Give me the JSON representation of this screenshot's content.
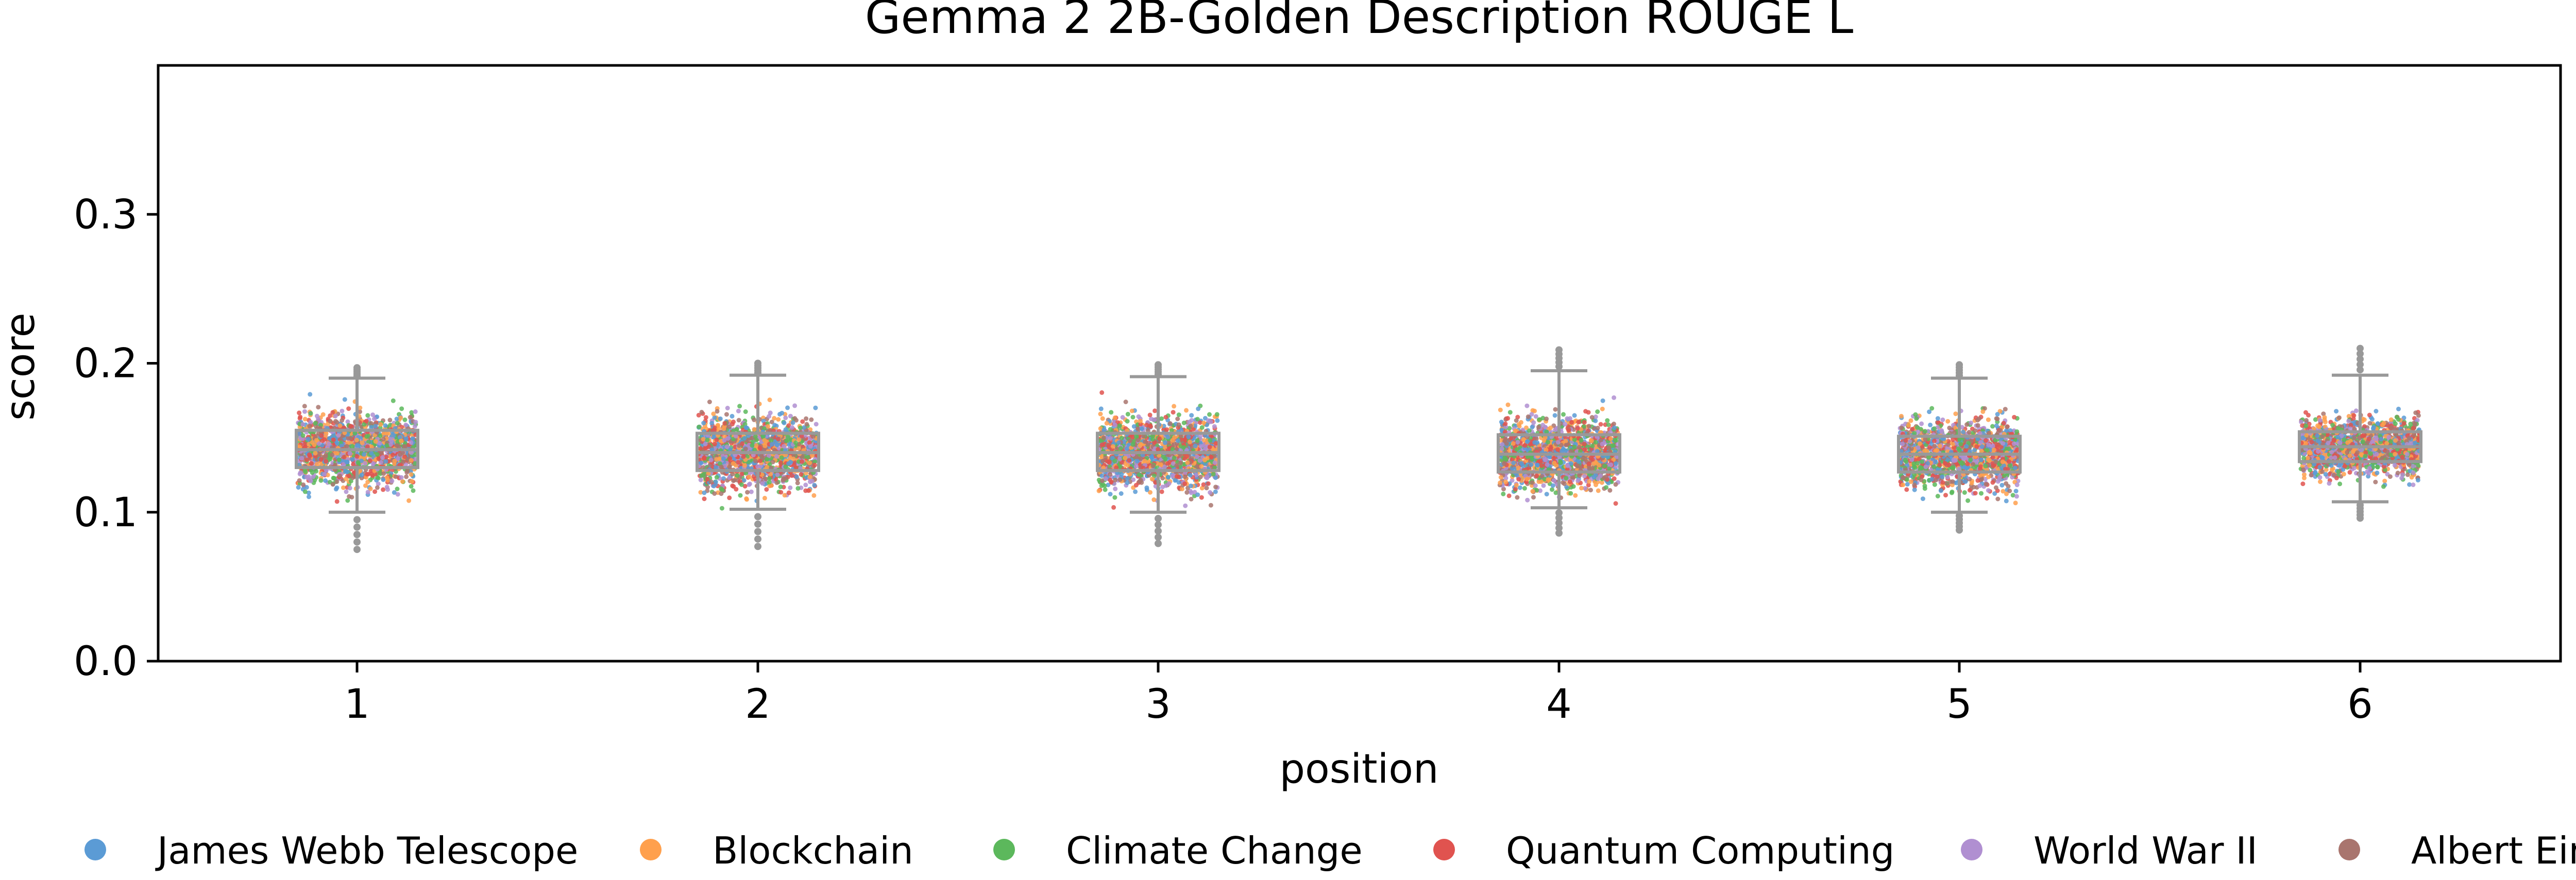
{
  "chart_data": {
    "type": "scatter",
    "title": "Gemma 2 2B-Golden Description ROUGE L",
    "xlabel": "position",
    "ylabel": "score",
    "categories": [
      "1",
      "2",
      "3",
      "4",
      "5",
      "6"
    ],
    "ylim": [
      0.0,
      0.4
    ],
    "yticks": [
      0.0,
      0.1,
      0.2,
      0.3
    ],
    "ytick_labels": [
      "0.0",
      "0.1",
      "0.2",
      "0.3"
    ],
    "grid": false,
    "legend_position": "bottom",
    "overlay": "box",
    "box_color": "#999999",
    "series": [
      {
        "name": "James Webb Telescope",
        "color": "#5b9bd5"
      },
      {
        "name": "Blockchain",
        "color": "#ffa04d"
      },
      {
        "name": "Climate Change",
        "color": "#5cb85c"
      },
      {
        "name": "Quantum Computing",
        "color": "#e0534f"
      },
      {
        "name": "World War II",
        "color": "#b08fd1"
      },
      {
        "name": "Albert Einstein",
        "color": "#a9756e"
      }
    ],
    "boxes": [
      {
        "position": "1",
        "whisker_low": 0.1,
        "q1": 0.13,
        "median": 0.142,
        "q3": 0.155,
        "whisker_high": 0.19,
        "points_min": 0.075,
        "points_max": 0.197
      },
      {
        "position": "2",
        "whisker_low": 0.102,
        "q1": 0.128,
        "median": 0.14,
        "q3": 0.153,
        "whisker_high": 0.192,
        "points_min": 0.077,
        "points_max": 0.2
      },
      {
        "position": "3",
        "whisker_low": 0.1,
        "q1": 0.128,
        "median": 0.14,
        "q3": 0.153,
        "whisker_high": 0.191,
        "points_min": 0.079,
        "points_max": 0.199
      },
      {
        "position": "4",
        "whisker_low": 0.103,
        "q1": 0.127,
        "median": 0.139,
        "q3": 0.152,
        "whisker_high": 0.195,
        "points_min": 0.086,
        "points_max": 0.209
      },
      {
        "position": "5",
        "whisker_low": 0.1,
        "q1": 0.127,
        "median": 0.139,
        "q3": 0.151,
        "whisker_high": 0.19,
        "points_min": 0.088,
        "points_max": 0.199
      },
      {
        "position": "6",
        "whisker_low": 0.107,
        "q1": 0.134,
        "median": 0.144,
        "q3": 0.154,
        "whisker_high": 0.192,
        "points_min": 0.096,
        "points_max": 0.21
      }
    ]
  }
}
